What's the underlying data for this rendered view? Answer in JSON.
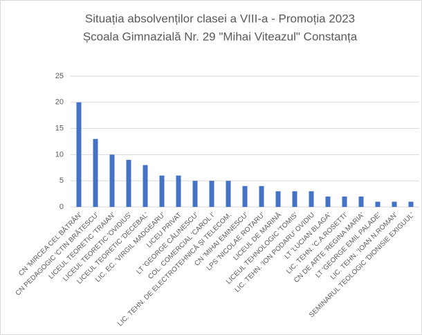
{
  "chart_data": {
    "type": "bar",
    "title": "Situația absolvenților clasei a VIII-a - Promoția 2023",
    "subtitle": "Școala Gimnazială Nr. 29 \"Mihai Viteazul\" Constanța",
    "categories": [
      "CN 'MIRCEA CEL BĂTRÂN'",
      "CN PEDAGOGIC 'CTIN BRĂTESCU'",
      "LICEUL TEORETIC 'TRAIAN'",
      "LICEUL TEORETIC 'OVIDIUS'",
      "LICEUL TEORETIC 'DECEBAL'",
      "LIC. EC. 'VIRGIL MADGEARU'",
      "LICEU PRIVAT",
      "LT 'GEORGE CĂLINESCU'",
      "COL. COMERCIAL 'CAROL I'",
      "LIC. TEHN. DE ELECTROTEHNICĂ ȘI TELECOM.",
      "CN 'MIHAI EMINESCU'",
      "LPS 'NICOLAE ROTARU'",
      "LICEUL DE MARINĂ",
      "LICEUL TEHNOLOGIC 'TOMIS'",
      "LIC. TEHN. 'ION PODARU' OVIDIU",
      "LT 'LUCIAN BLAGA'",
      "LIC. TEHN. 'C.A.ROSETTI'",
      "CN DE ARTE 'REGINA MARIA'",
      "LT 'GEORGE EMIL PALADE'",
      "LIC. TEHN. 'IOAN N.ROMAN'",
      "SEMINARUL TEOLOGIC 'DIONISIE EXIGUUL'"
    ],
    "values": [
      20,
      13,
      10,
      9,
      8,
      6,
      6,
      5,
      5,
      5,
      4,
      4,
      3,
      3,
      3,
      2,
      2,
      2,
      1,
      1,
      1
    ],
    "color": "#4472c4",
    "ylim": [
      0,
      25
    ],
    "yticks": [
      0,
      5,
      10,
      15,
      20,
      25
    ],
    "grid": true
  }
}
